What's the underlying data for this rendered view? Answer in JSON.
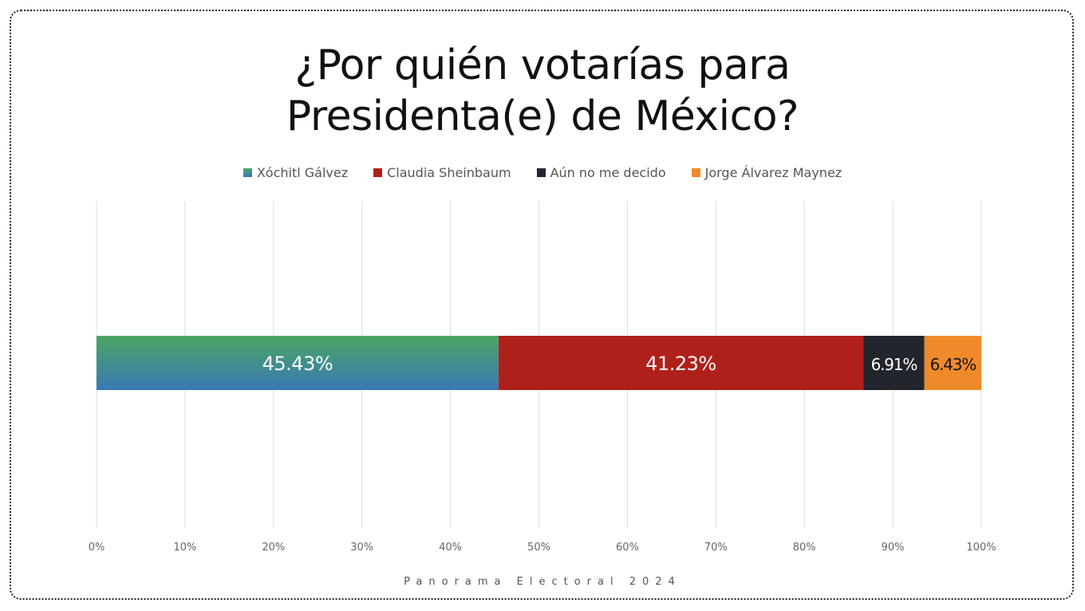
{
  "title_line1": "¿Por quién votarías para",
  "title_line2": "Presidenta(e) de México?",
  "footer": "Panorama Electoral 2024",
  "chart_data": {
    "type": "bar",
    "orientation": "horizontal",
    "stacked": true,
    "categories": [
      ""
    ],
    "xlim": [
      0,
      100
    ],
    "tick_labels": [
      "0%",
      "10%",
      "20%",
      "30%",
      "40%",
      "50%",
      "60%",
      "70%",
      "80%",
      "90%",
      "100%"
    ],
    "grid": true,
    "legend_position": "top",
    "series": [
      {
        "name": "Xóchitl Gálvez",
        "values": [
          45.43
        ],
        "label": "45.43%",
        "color": "#3a78b5",
        "gradient_top": "#4aa664",
        "label_color": "#ffffff"
      },
      {
        "name": "Claudia Sheinbaum",
        "values": [
          41.23
        ],
        "label": "41.23%",
        "color": "#b0201a",
        "label_color": "#ffffff"
      },
      {
        "name": "Aún no me decido",
        "values": [
          6.91
        ],
        "label": "6.91%",
        "color": "#23252e",
        "label_color": "#ffffff"
      },
      {
        "name": "Jorge Álvarez Maynez",
        "values": [
          6.43
        ],
        "label": "6.43%",
        "color": "#ef8a2a",
        "label_color": "#111111"
      }
    ]
  }
}
